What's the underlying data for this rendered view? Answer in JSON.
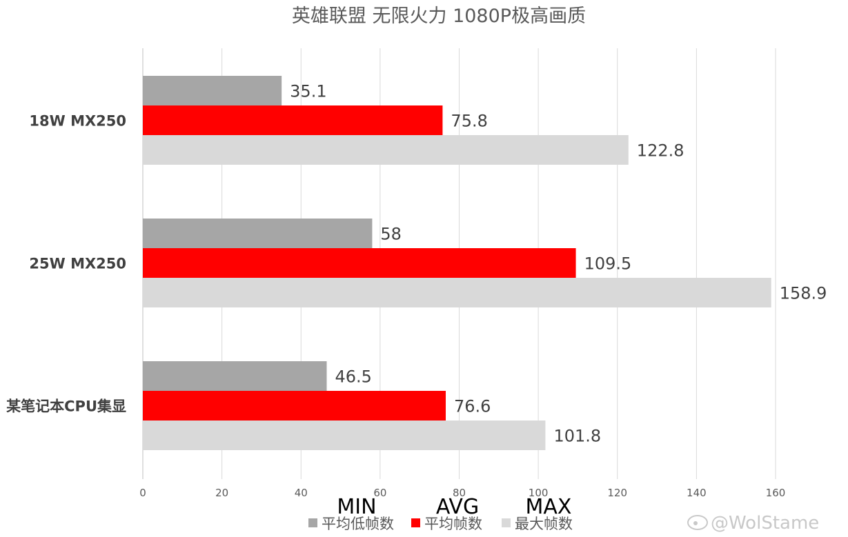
{
  "chart_data": {
    "type": "bar",
    "orientation": "horizontal",
    "title": "英雄联盟 无限火力  1080P极高画质",
    "categories": [
      "18W MX250",
      "25W MX250",
      "某笔记本CPU集显"
    ],
    "series": [
      {
        "name": "平均低帧数",
        "color": "#a6a6a6",
        "values": [
          35.1,
          58,
          46.5
        ],
        "labels": [
          "35.1",
          "58",
          "46.5"
        ]
      },
      {
        "name": "平均帧数",
        "color": "#ff0000",
        "values": [
          75.8,
          109.5,
          76.6
        ],
        "labels": [
          "75.8",
          "109.5",
          "76.6"
        ]
      },
      {
        "name": "最大帧数",
        "color": "#d9d9d9",
        "values": [
          122.8,
          158.9,
          101.8
        ],
        "labels": [
          "122.8",
          "158.9",
          "101.8"
        ]
      }
    ],
    "xlim": [
      0,
      180
    ],
    "ticks": [
      "0",
      "20",
      "40",
      "60",
      "80",
      "100",
      "120",
      "140",
      "160"
    ],
    "grid": true,
    "legend_position": "bottom",
    "annotations": [
      "MIN",
      "AVG",
      "MAX"
    ],
    "watermark": "@WolStame"
  }
}
